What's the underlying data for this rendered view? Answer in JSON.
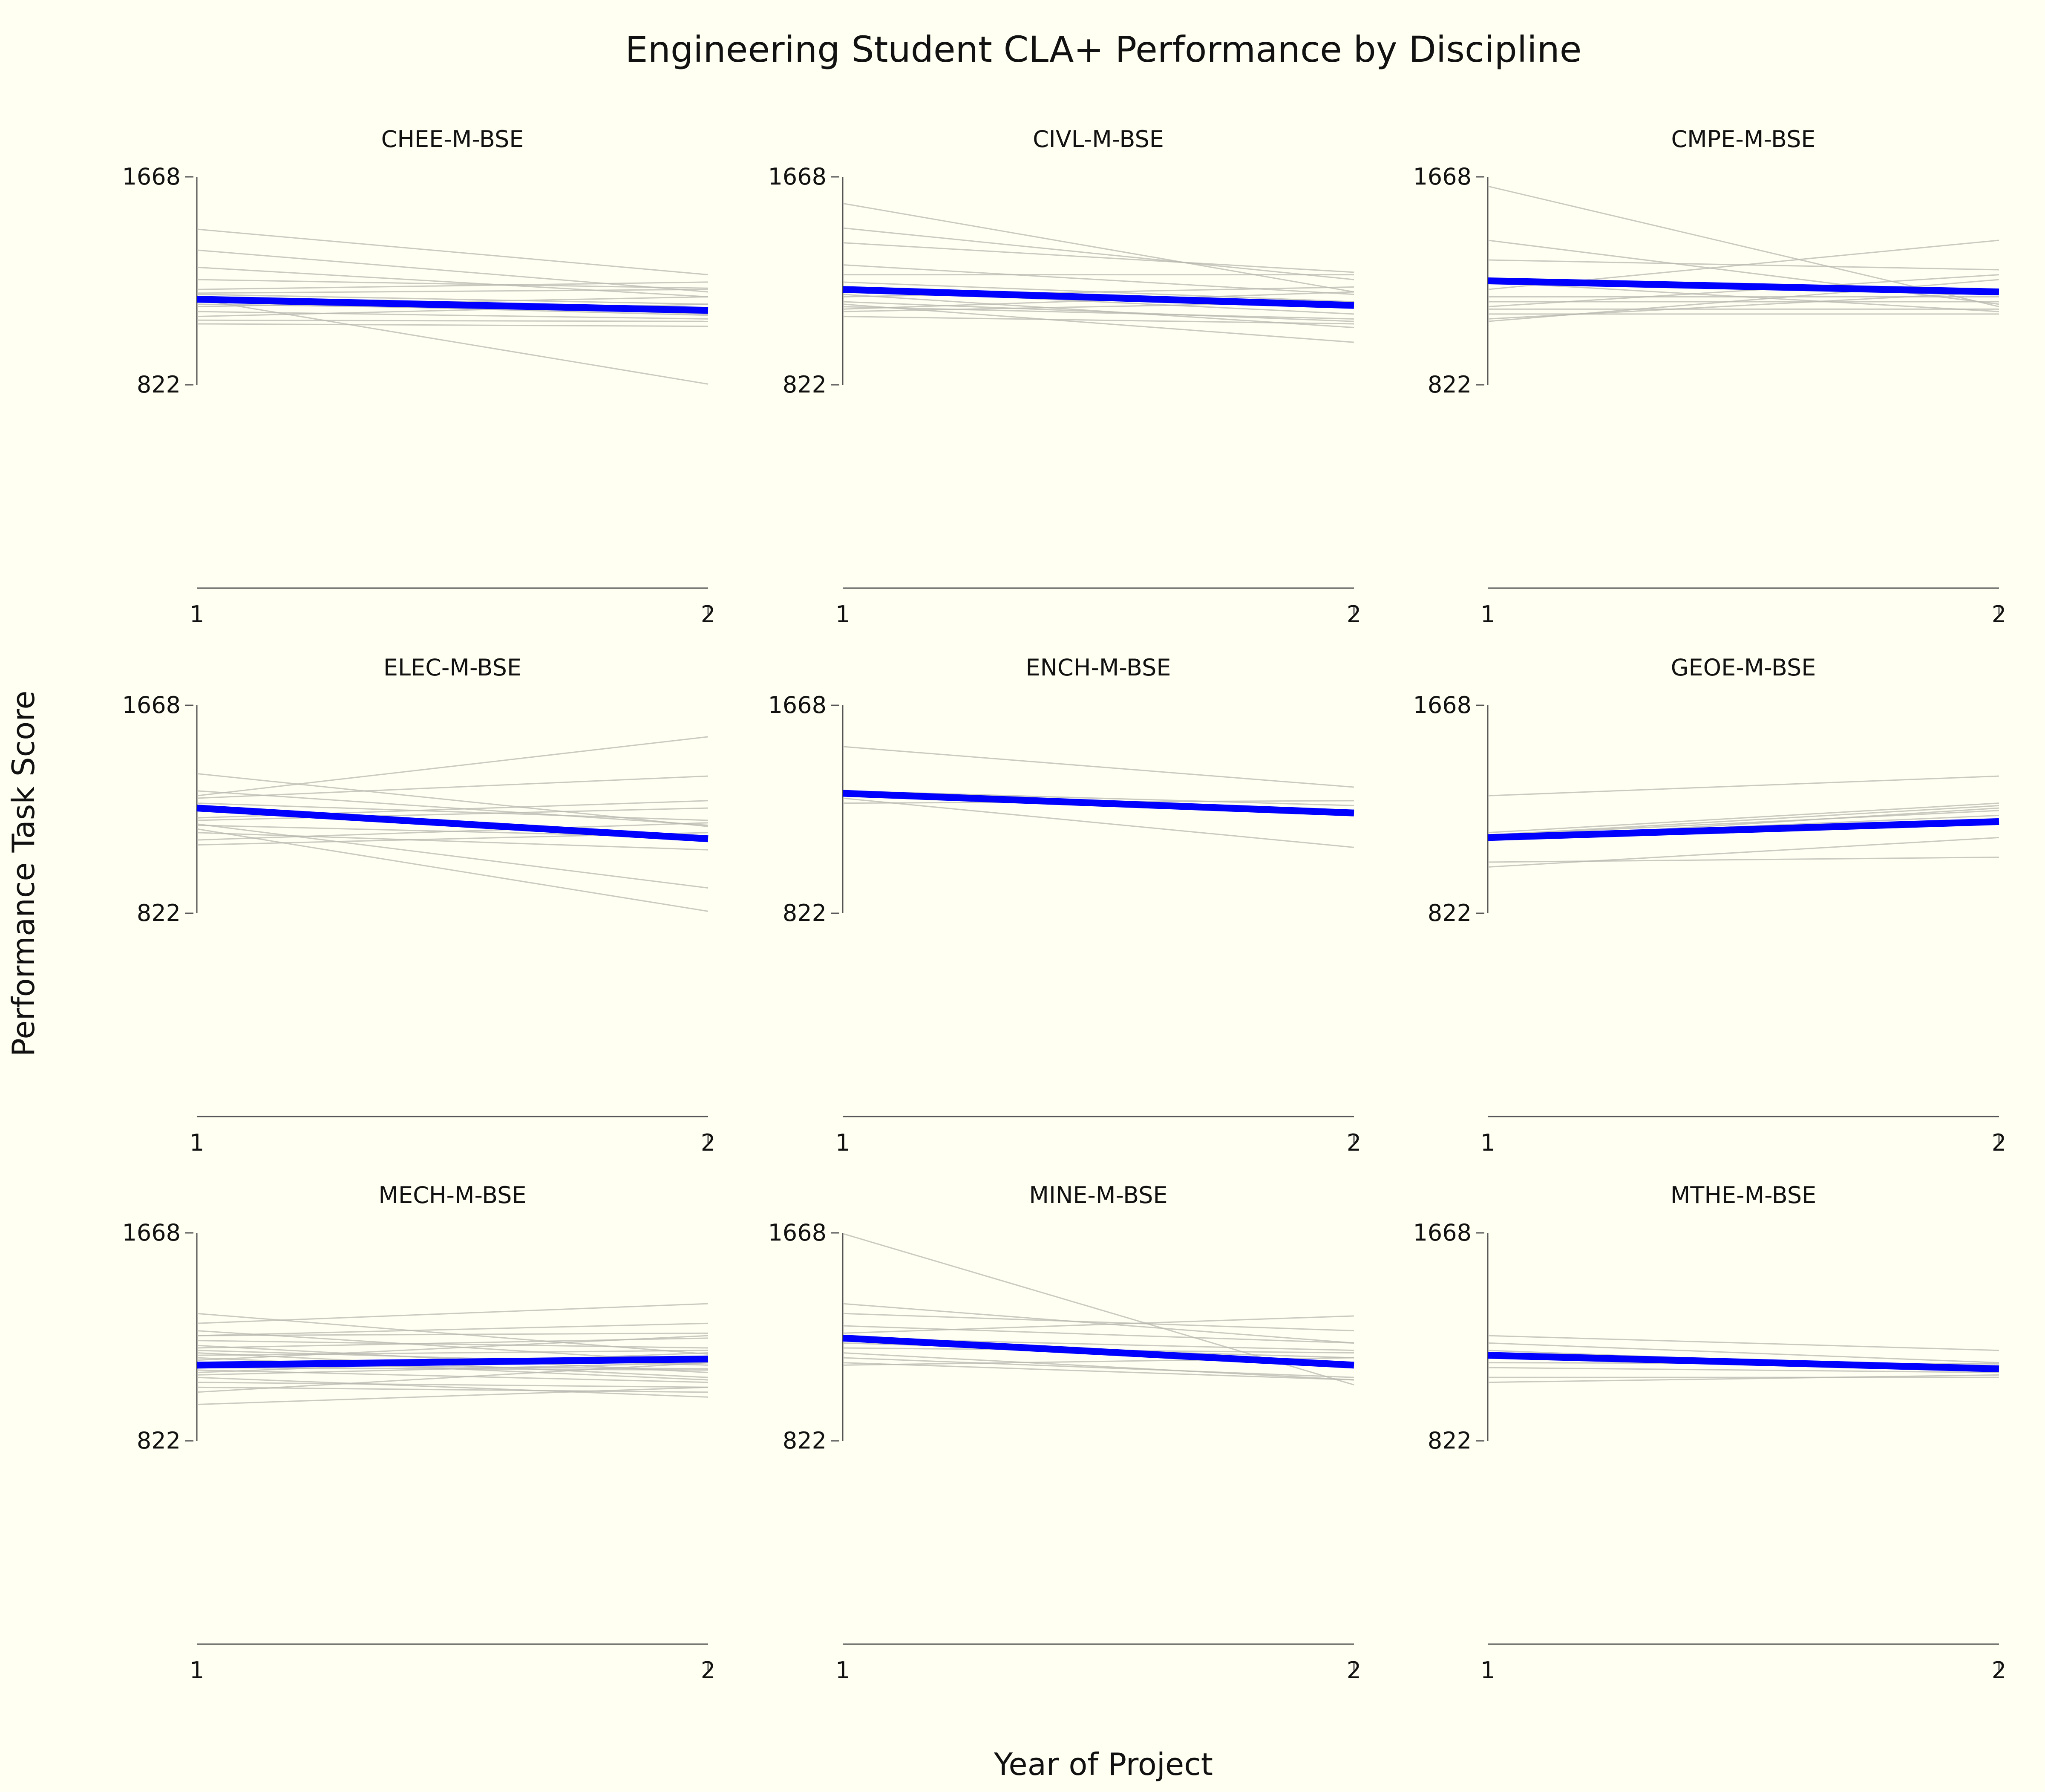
{
  "chart_data": {
    "type": "line",
    "title": "Engineering Student CLA+ Performance by Discipline",
    "xlabel": "Year of Project",
    "ylabel": "Performance Task Score",
    "x": [
      1,
      2
    ],
    "x_tick_labels": [
      "1",
      "2"
    ],
    "y_ticks": [
      822,
      1668
    ],
    "y_tick_labels": [
      "822",
      "1668"
    ],
    "y_range": [
      822,
      1668
    ],
    "grid": false,
    "legend": "none",
    "colors": {
      "mean": "#0000ff",
      "individual": "#b8b8b0",
      "axis": "#555555",
      "background": "#fffff2"
    },
    "facets": [
      {
        "name": "CHEE-M-BSE",
        "mean": [
          1170,
          1125
        ],
        "students": [
          [
            1455,
            1270
          ],
          [
            1370,
            1200
          ],
          [
            1300,
            1180
          ],
          [
            1250,
            1215
          ],
          [
            1210,
            1240
          ],
          [
            1195,
            1210
          ],
          [
            1190,
            1150
          ],
          [
            1180,
            1110
          ],
          [
            1160,
            1105
          ],
          [
            1150,
            1120
          ],
          [
            1140,
            1180
          ],
          [
            1120,
            1090
          ],
          [
            1100,
            1150
          ],
          [
            1085,
            1080
          ],
          [
            1070,
            1060
          ],
          [
            1170,
            825
          ]
        ]
      },
      {
        "name": "CIVL-M-BSE",
        "mean": [
          1210,
          1145
        ],
        "students": [
          [
            1560,
            1200
          ],
          [
            1460,
            1250
          ],
          [
            1400,
            1280
          ],
          [
            1310,
            1190
          ],
          [
            1270,
            1270
          ],
          [
            1240,
            1160
          ],
          [
            1210,
            1110
          ],
          [
            1180,
            1220
          ],
          [
            1160,
            1080
          ],
          [
            1140,
            1090
          ],
          [
            1130,
            1200
          ],
          [
            1120,
            1160
          ],
          [
            1100,
            1070
          ],
          [
            1190,
            1055
          ],
          [
            1150,
            995
          ]
        ]
      },
      {
        "name": "CMPE-M-BSE",
        "mean": [
          1245,
          1200
        ],
        "students": [
          [
            1630,
            1140
          ],
          [
            1410,
            1150
          ],
          [
            1330,
            1290
          ],
          [
            1210,
            1410
          ],
          [
            1180,
            1180
          ],
          [
            1160,
            1160
          ],
          [
            1140,
            1270
          ],
          [
            1130,
            1130
          ],
          [
            1110,
            1110
          ],
          [
            1080,
            1250
          ],
          [
            1090,
            1200
          ],
          [
            1240,
            1120
          ]
        ]
      },
      {
        "name": "ELEC-M-BSE",
        "mean": [
          1250,
          1125
        ],
        "students": [
          [
            1390,
            1175
          ],
          [
            1320,
            1180
          ],
          [
            1300,
            1540
          ],
          [
            1290,
            1380
          ],
          [
            1210,
            1280
          ],
          [
            1270,
            1200
          ],
          [
            1200,
            1250
          ],
          [
            1180,
            1130
          ],
          [
            1150,
            1080
          ],
          [
            1120,
            1190
          ],
          [
            1100,
            1150
          ],
          [
            1185,
            925
          ],
          [
            1165,
            830
          ]
        ]
      },
      {
        "name": "ENCH-M-BSE",
        "mean": [
          1310,
          1230
        ],
        "students": [
          [
            1500,
            1335
          ],
          [
            1320,
            1260
          ],
          [
            1290,
            1090
          ],
          [
            1270,
            1280
          ]
        ]
      },
      {
        "name": "GEOE-M-BSE",
        "mean": [
          1130,
          1195
        ],
        "students": [
          [
            1300,
            1380
          ],
          [
            1150,
            1270
          ],
          [
            1130,
            1220
          ],
          [
            1140,
            1240
          ],
          [
            1030,
            1050
          ],
          [
            1010,
            1130
          ],
          [
            1120,
            1250
          ],
          [
            1140,
            1260
          ]
        ]
      },
      {
        "name": "MECH-M-BSE",
        "mean": [
          1130,
          1155
        ],
        "students": [
          [
            1340,
            1175
          ],
          [
            1300,
            1380
          ],
          [
            1270,
            1140
          ],
          [
            1250,
            1260
          ],
          [
            1250,
            1300
          ],
          [
            1230,
            1200
          ],
          [
            1210,
            1100
          ],
          [
            1200,
            1240
          ],
          [
            1190,
            1130
          ],
          [
            1180,
            1080
          ],
          [
            1170,
            1190
          ],
          [
            1160,
            1070
          ],
          [
            1150,
            1250
          ],
          [
            1140,
            1150
          ],
          [
            1130,
            1115
          ],
          [
            1120,
            1110
          ],
          [
            1110,
            1060
          ],
          [
            1100,
            1180
          ],
          [
            1090,
            1140
          ],
          [
            1080,
            1000
          ],
          [
            1060,
            1040
          ],
          [
            1040,
            1020
          ],
          [
            1020,
            1140
          ],
          [
            970,
            1040
          ]
        ]
      },
      {
        "name": "MINE-M-BSE",
        "mean": [
          1240,
          1130
        ],
        "students": [
          [
            1665,
            1050
          ],
          [
            1380,
            1220
          ],
          [
            1340,
            1270
          ],
          [
            1290,
            1220
          ],
          [
            1260,
            1330
          ],
          [
            1240,
            1190
          ],
          [
            1220,
            1160
          ],
          [
            1200,
            1180
          ],
          [
            1180,
            1070
          ],
          [
            1160,
            1080
          ],
          [
            1140,
            1070
          ],
          [
            1130,
            1160
          ]
        ]
      },
      {
        "name": "MTHE-M-BSE",
        "mean": [
          1170,
          1115
        ],
        "students": [
          [
            1250,
            1190
          ],
          [
            1220,
            1140
          ],
          [
            1190,
            1110
          ],
          [
            1160,
            1120
          ],
          [
            1140,
            1135
          ],
          [
            1120,
            1100
          ],
          [
            1080,
            1080
          ],
          [
            1060,
            1090
          ]
        ]
      }
    ]
  }
}
